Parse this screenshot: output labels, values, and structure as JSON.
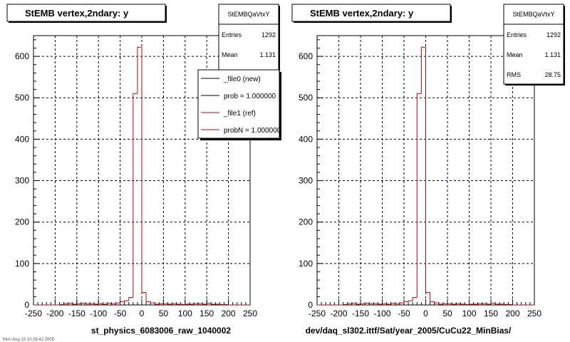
{
  "panels": [
    {
      "title": "StEMB  vertex,2ndary: y",
      "stats": {
        "name": "StEMBQaVtxY",
        "rows": [
          [
            "Entries",
            "1292"
          ],
          [
            "Mean",
            "1.131"
          ]
        ]
      },
      "legend": [
        {
          "label": "_file0 (new)",
          "color": "#000000"
        },
        {
          "label": "prob = 1.000000",
          "color": "#000000"
        },
        {
          "label": "_file1 (ref)",
          "color": "#cc0000"
        },
        {
          "label": "probN = 1.000000",
          "color": "#cc0000"
        }
      ],
      "xlabel": "st_physics_6083006_raw_1040002"
    },
    {
      "title": "StEMB  vertex,2ndary: y",
      "stats": {
        "name": "StEMBQaVtxY",
        "rows": [
          [
            "Entries",
            "1292"
          ],
          [
            "Mean",
            "1.131"
          ],
          [
            "RMS",
            "28.75"
          ]
        ]
      },
      "legend": [],
      "xlabel": "dev/daq_sl302.ittf/Sat/year_2005/CuCu22_MinBias/"
    }
  ],
  "footer_text": "Mon Aug 15 10:26:42 2005",
  "chart_data": [
    {
      "type": "bar",
      "title": "StEMB  vertex,2ndary: y",
      "xlabel": "st_physics_6083006_raw_1040002",
      "xlim": [
        -250,
        250
      ],
      "ylim": [
        0,
        650
      ],
      "xticks": [
        -250,
        -200,
        -150,
        -100,
        -50,
        0,
        50,
        100,
        150,
        200,
        250
      ],
      "yticks": [
        0,
        100,
        200,
        300,
        400,
        500,
        600
      ],
      "grid": true,
      "bin_edges": [
        -250,
        -240,
        -230,
        -220,
        -210,
        -200,
        -190,
        -180,
        -170,
        -160,
        -150,
        -140,
        -130,
        -120,
        -110,
        -100,
        -90,
        -80,
        -70,
        -60,
        -50,
        -40,
        -30,
        -20,
        -10,
        0,
        10,
        20,
        30,
        40,
        50,
        60,
        70,
        80,
        90,
        100,
        110,
        120,
        130,
        140,
        150,
        160,
        170,
        180,
        190,
        200,
        210,
        220,
        230,
        240,
        250
      ],
      "series": [
        {
          "name": "_file1 (ref)",
          "color": "#cc0000",
          "values": [
            0,
            0,
            0,
            0,
            0,
            0,
            1,
            3,
            4,
            2,
            3,
            4,
            3,
            3,
            2,
            3,
            2,
            4,
            3,
            5,
            8,
            10,
            18,
            510,
            622,
            30,
            8,
            5,
            2,
            3,
            3,
            2,
            3,
            2,
            1,
            2,
            2,
            3,
            3,
            2,
            4,
            2,
            2,
            1,
            1,
            0,
            0,
            0,
            0,
            0
          ]
        }
      ]
    },
    {
      "type": "bar",
      "title": "StEMB  vertex,2ndary: y",
      "xlabel": "dev/daq_sl302.ittf/Sat/year_2005/CuCu22_MinBias/",
      "xlim": [
        -250,
        250
      ],
      "ylim": [
        0,
        650
      ],
      "xticks": [
        -250,
        -200,
        -150,
        -100,
        -50,
        0,
        50,
        100,
        150,
        200,
        250
      ],
      "yticks": [
        0,
        100,
        200,
        300,
        400,
        500,
        600
      ],
      "grid": true,
      "bin_edges": [
        -250,
        -240,
        -230,
        -220,
        -210,
        -200,
        -190,
        -180,
        -170,
        -160,
        -150,
        -140,
        -130,
        -120,
        -110,
        -100,
        -90,
        -80,
        -70,
        -60,
        -50,
        -40,
        -30,
        -20,
        -10,
        0,
        10,
        20,
        30,
        40,
        50,
        60,
        70,
        80,
        90,
        100,
        110,
        120,
        130,
        140,
        150,
        160,
        170,
        180,
        190,
        200,
        210,
        220,
        230,
        240,
        250
      ],
      "series": [
        {
          "color": "#cc0000",
          "values": [
            0,
            0,
            0,
            0,
            0,
            0,
            1,
            3,
            4,
            2,
            3,
            4,
            3,
            3,
            2,
            3,
            2,
            4,
            3,
            5,
            8,
            10,
            18,
            510,
            622,
            30,
            8,
            5,
            2,
            3,
            3,
            2,
            3,
            2,
            1,
            2,
            2,
            3,
            3,
            2,
            4,
            2,
            2,
            1,
            1,
            0,
            0,
            0,
            0,
            0
          ]
        }
      ]
    }
  ]
}
